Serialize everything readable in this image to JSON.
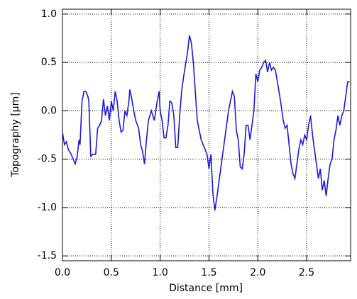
{
  "chart_data": {
    "type": "line",
    "xlabel": "Distance [mm]",
    "ylabel": "Topography [μm]",
    "xlim": [
      0,
      2.95
    ],
    "ylim": [
      -1.55,
      1.05
    ],
    "xticks": [
      {
        "value": 0,
        "label": "0.0"
      },
      {
        "value": 0.5,
        "label": "0.5"
      },
      {
        "value": 1,
        "label": "1.0"
      },
      {
        "value": 1.5,
        "label": "1.5"
      },
      {
        "value": 2,
        "label": "2.0"
      },
      {
        "value": 2.5,
        "label": "2.5"
      }
    ],
    "yticks": [
      {
        "value": -1.5,
        "label": "-1.5"
      },
      {
        "value": -1,
        "label": "-1.0"
      },
      {
        "value": -0.5,
        "label": "-0.5"
      },
      {
        "value": 0,
        "label": "0.0"
      },
      {
        "value": 0.5,
        "label": "0.5"
      },
      {
        "value": 1,
        "label": "1.0"
      }
    ],
    "grid": true,
    "series": [
      {
        "color": "#1a1adb",
        "x": [
          0,
          0.02,
          0.04,
          0.06,
          0.09,
          0.11,
          0.13,
          0.15,
          0.17,
          0.18,
          0.2,
          0.22,
          0.24,
          0.26,
          0.27,
          0.29,
          0.31,
          0.34,
          0.36,
          0.38,
          0.4,
          0.42,
          0.44,
          0.46,
          0.48,
          0.5,
          0.52,
          0.54,
          0.56,
          0.58,
          0.6,
          0.62,
          0.64,
          0.66,
          0.68,
          0.69,
          0.71,
          0.73,
          0.75,
          0.78,
          0.8,
          0.82,
          0.84,
          0.86,
          0.88,
          0.91,
          0.94,
          0.97,
          0.99,
          1.0,
          1.02,
          1.04,
          1.06,
          1.08,
          1.1,
          1.12,
          1.14,
          1.16,
          1.18,
          1.2,
          1.22,
          1.24,
          1.26,
          1.28,
          1.3,
          1.32,
          1.34,
          1.36,
          1.38,
          1.4,
          1.42,
          1.44,
          1.46,
          1.48,
          1.5,
          1.52,
          1.54,
          1.56,
          1.58,
          1.6,
          1.62,
          1.64,
          1.66,
          1.68,
          1.7,
          1.72,
          1.74,
          1.76,
          1.78,
          1.8,
          1.82,
          1.84,
          1.86,
          1.88,
          1.9,
          1.92,
          1.94,
          1.96,
          1.98,
          2.0,
          2.02,
          2.04,
          2.06,
          2.08,
          2.1,
          2.12,
          2.14,
          2.16,
          2.18,
          2.2,
          2.22,
          2.24,
          2.26,
          2.28,
          2.3,
          2.32,
          2.34,
          2.36,
          2.38,
          2.4,
          2.42,
          2.44,
          2.46,
          2.48,
          2.5,
          2.52,
          2.54,
          2.56,
          2.58,
          2.6,
          2.62,
          2.64,
          2.66,
          2.68,
          2.7,
          2.72,
          2.74,
          2.76,
          2.78,
          2.8,
          2.82,
          2.84,
          2.86,
          2.88,
          2.9,
          2.92,
          2.94
        ],
        "values": [
          -0.22,
          -0.35,
          -0.32,
          -0.4,
          -0.45,
          -0.5,
          -0.55,
          -0.48,
          -0.3,
          -0.35,
          0.1,
          0.2,
          0.2,
          0.15,
          0.1,
          -0.47,
          -0.45,
          -0.45,
          -0.18,
          -0.15,
          -0.1,
          0.12,
          -0.05,
          0.05,
          -0.1,
          0.1,
          0.0,
          0.2,
          0.1,
          -0.1,
          -0.22,
          -0.2,
          0.0,
          -0.05,
          0.1,
          0.22,
          0.12,
          0.0,
          -0.1,
          -0.18,
          -0.35,
          -0.42,
          -0.55,
          -0.3,
          -0.1,
          0.0,
          -0.1,
          0.1,
          0.2,
          0.0,
          -0.1,
          -0.28,
          -0.28,
          -0.15,
          0.1,
          0.08,
          -0.05,
          -0.38,
          -0.38,
          -0.05,
          0.2,
          0.35,
          0.48,
          0.6,
          0.78,
          0.7,
          0.5,
          0.2,
          -0.1,
          -0.2,
          -0.3,
          -0.35,
          -0.4,
          -0.45,
          -0.6,
          -0.45,
          -0.85,
          -1.03,
          -0.9,
          -0.75,
          -0.6,
          -0.45,
          -0.3,
          -0.15,
          0.0,
          0.1,
          0.2,
          0.15,
          -0.2,
          -0.3,
          -0.58,
          -0.6,
          -0.45,
          -0.15,
          -0.15,
          -0.3,
          -0.15,
          0.0,
          0.38,
          0.3,
          0.42,
          0.45,
          0.5,
          0.52,
          0.4,
          0.5,
          0.42,
          0.45,
          0.42,
          0.3,
          0.18,
          0.05,
          -0.1,
          -0.18,
          -0.15,
          -0.35,
          -0.55,
          -0.65,
          -0.7,
          -0.55,
          -0.4,
          -0.3,
          -0.35,
          -0.25,
          -0.3,
          -0.15,
          -0.05,
          -0.25,
          -0.4,
          -0.55,
          -0.7,
          -0.6,
          -0.82,
          -0.72,
          -0.88,
          -0.7,
          -0.55,
          -0.5,
          -0.3,
          -0.2,
          -0.05,
          -0.15,
          -0.05,
          0.0,
          0.15,
          0.3,
          0.3
        ]
      }
    ]
  }
}
